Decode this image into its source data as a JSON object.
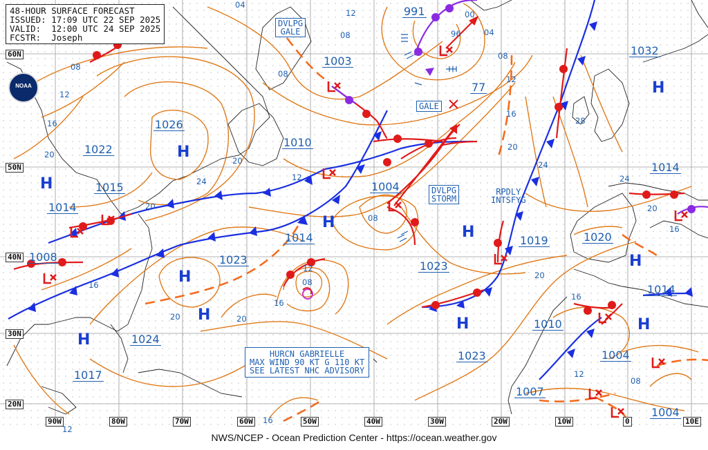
{
  "header": {
    "line1": "48-HOUR SURFACE FORECAST",
    "line2": "ISSUED: 17:09 UTC 22 SEP 2025",
    "line3": "VALID:  12:00 UTC 24 SEP 2025",
    "line4": "FCSTR:  Joseph"
  },
  "logo_text": "NOAA",
  "footer": "NWS/NCEP - Ocean Prediction Center - https://ocean.weather.gov",
  "latitudes": [
    "60N",
    "50N",
    "40N",
    "30N",
    "20N"
  ],
  "longitudes": [
    "90W",
    "80W",
    "70W",
    "60W",
    "50W",
    "40W",
    "30W",
    "20W",
    "10W",
    "0",
    "10E"
  ],
  "boxes": {
    "dvlpg_gale": "DVLPG\nGALE",
    "gale": "GALE",
    "dvlpg_storm": "DVLPG\nSTORM",
    "hurricane": "HURCN GABRIELLE\nMAX WIND 90 KT G 110 KT\nSEE LATEST NHC ADVISORY"
  },
  "rpdly": "RPDLY\nINTSFYG",
  "pressures": {
    "p1003": "1003",
    "p991": "991",
    "p77": "77",
    "p1032": "1032",
    "p1026": "1026",
    "p1022": "1022",
    "p1015": "1015",
    "p1014a": "1014",
    "p1010a": "1010",
    "p1004a": "1004",
    "p1014b": "1014",
    "p1014c": "1014",
    "p1008": "1008",
    "p1023a": "1023",
    "p1023b": "1023",
    "p1019": "1019",
    "p1020": "1020",
    "p1014d": "1014",
    "p1010b": "1010",
    "p1024": "1024",
    "p1017": "1017",
    "p1023c": "1023",
    "p1004b": "1004",
    "p1007": "1007",
    "p1004c": "1004"
  },
  "isobar_labels": [
    "04",
    "12",
    "08",
    "04",
    "00",
    "96",
    "08",
    "12",
    "08",
    "16",
    "08",
    "12",
    "16",
    "20",
    "28",
    "24",
    "20",
    "24",
    "20",
    "12",
    "20",
    "24",
    "20",
    "16",
    "12",
    "08",
    "08",
    "16",
    "16",
    "20",
    "20",
    "16",
    "20",
    "12",
    "08",
    "16",
    "12"
  ],
  "symbols": {
    "high": "H",
    "low": "L",
    "storm": "X"
  },
  "colors": {
    "isobar": "#e07a1a",
    "cold_front": "#1a2fe0",
    "warm_front": "#e01a1a",
    "occluded": "#8a2be2",
    "trough": "#f26b1d",
    "label": "#1f5fb0",
    "land": "#222222",
    "grid": "#9a9a9a"
  }
}
